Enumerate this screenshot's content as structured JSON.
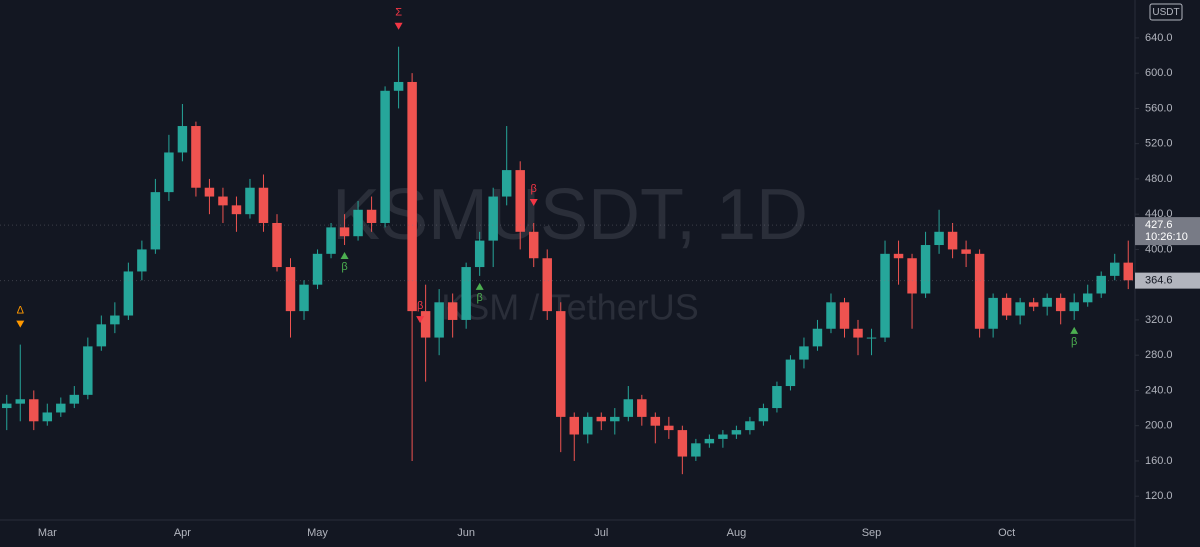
{
  "chart_data": {
    "type": "candlestick",
    "watermark": "KSMUSDT, 1D",
    "watermark_subtitle": "KSM / TetherUS",
    "currency": "USDT",
    "up_color": "#26a69a",
    "down_color": "#ef5350",
    "categories": [
      null,
      null,
      null,
      "Mar",
      null,
      null,
      null,
      null,
      null,
      null,
      null,
      null,
      null,
      "Apr",
      null,
      null,
      null,
      null,
      null,
      null,
      null,
      null,
      null,
      "May",
      null,
      null,
      null,
      null,
      null,
      null,
      null,
      null,
      null,
      null,
      "Jun",
      null,
      null,
      null,
      null,
      null,
      null,
      null,
      null,
      null,
      "Jul",
      null,
      null,
      null,
      null,
      null,
      null,
      null,
      null,
      null,
      "Aug",
      null,
      null,
      null,
      null,
      null,
      null,
      null,
      null,
      null,
      "Sep",
      null,
      null,
      null,
      null,
      null,
      null,
      null,
      null,
      null,
      "Oct",
      null,
      null,
      null,
      null,
      null,
      null,
      null,
      null,
      null
    ],
    "open": [
      220,
      225,
      230,
      205,
      215,
      225,
      235,
      290,
      315,
      325,
      375,
      400,
      465,
      510,
      540,
      470,
      460,
      450,
      440,
      470,
      430,
      380,
      330,
      360,
      395,
      425,
      415,
      445,
      430,
      580,
      590,
      330,
      300,
      340,
      320,
      380,
      410,
      460,
      490,
      420,
      390,
      330,
      210,
      190,
      210,
      205,
      210,
      230,
      210,
      200,
      195,
      165,
      180,
      185,
      190,
      195,
      205,
      220,
      245,
      275,
      290,
      310,
      340,
      310,
      300,
      300,
      395,
      390,
      350,
      405,
      420,
      400,
      395,
      310,
      345,
      325,
      340,
      335,
      345,
      330,
      340,
      350,
      370,
      385
    ],
    "high": [
      235,
      292,
      240,
      225,
      232,
      245,
      300,
      325,
      340,
      385,
      410,
      480,
      530,
      565,
      545,
      480,
      470,
      460,
      480,
      485,
      440,
      390,
      365,
      400,
      430,
      440,
      455,
      460,
      585,
      630,
      600,
      360,
      355,
      350,
      385,
      420,
      470,
      540,
      500,
      430,
      400,
      340,
      215,
      215,
      215,
      220,
      245,
      235,
      215,
      210,
      200,
      185,
      190,
      195,
      200,
      210,
      225,
      250,
      280,
      300,
      320,
      350,
      345,
      320,
      310,
      410,
      410,
      395,
      420,
      445,
      430,
      410,
      400,
      350,
      350,
      345,
      345,
      350,
      350,
      350,
      360,
      375,
      395,
      410
    ],
    "low": [
      195,
      205,
      195,
      200,
      210,
      220,
      230,
      285,
      305,
      320,
      365,
      395,
      455,
      500,
      460,
      440,
      430,
      420,
      435,
      420,
      375,
      300,
      320,
      355,
      390,
      405,
      410,
      420,
      425,
      560,
      160,
      250,
      280,
      300,
      310,
      370,
      380,
      450,
      400,
      380,
      320,
      170,
      160,
      180,
      195,
      190,
      205,
      200,
      180,
      185,
      145,
      160,
      175,
      175,
      185,
      190,
      200,
      215,
      240,
      265,
      285,
      305,
      300,
      280,
      280,
      295,
      360,
      310,
      345,
      395,
      390,
      380,
      300,
      300,
      320,
      315,
      330,
      325,
      315,
      320,
      335,
      345,
      365,
      355
    ],
    "close": [
      225,
      230,
      205,
      215,
      225,
      235,
      290,
      315,
      325,
      375,
      400,
      465,
      510,
      540,
      470,
      460,
      450,
      440,
      470,
      430,
      380,
      330,
      360,
      395,
      425,
      415,
      445,
      430,
      580,
      590,
      330,
      300,
      340,
      320,
      380,
      410,
      460,
      490,
      420,
      390,
      330,
      210,
      190,
      210,
      205,
      210,
      230,
      210,
      200,
      195,
      165,
      180,
      185,
      190,
      195,
      205,
      220,
      245,
      275,
      290,
      310,
      340,
      310,
      300,
      300,
      395,
      390,
      350,
      405,
      420,
      400,
      395,
      310,
      345,
      325,
      340,
      335,
      345,
      330,
      340,
      350,
      370,
      385,
      365
    ],
    "ylim": [
      93,
      683
    ],
    "yticks": [
      {
        "value": 120,
        "label": "120.0"
      },
      {
        "value": 160,
        "label": "160.0"
      },
      {
        "value": 200,
        "label": "200.0"
      },
      {
        "value": 240,
        "label": "240.0"
      },
      {
        "value": 280,
        "label": "280.0"
      },
      {
        "value": 320,
        "label": "320.0"
      },
      {
        "value": 360,
        "label": "360.0"
      },
      {
        "value": 400,
        "label": "400.0"
      },
      {
        "value": 440,
        "label": "440.0"
      },
      {
        "value": 480,
        "label": "480.0"
      },
      {
        "value": 520,
        "label": "520.0"
      },
      {
        "value": 560,
        "label": "560.0"
      },
      {
        "value": 600,
        "label": "600.0"
      },
      {
        "value": 640,
        "label": "640.0"
      }
    ],
    "grid": false,
    "annotations": [
      {
        "text": "Δ",
        "color": "#ff9800"
      },
      {
        "text": "β",
        "color": "#4caf50"
      },
      {
        "text": "Σ",
        "color": "#f23645"
      },
      {
        "text": "β",
        "color": "#f23645"
      },
      {
        "text": "β",
        "color": "#4caf50"
      },
      {
        "text": "β",
        "color": "#f23645"
      },
      {
        "text": "β",
        "color": "#4caf50"
      }
    ],
    "price_marker": {
      "value": 427.6,
      "label": "427.6",
      "countdown": "10:26:10"
    },
    "last_price": {
      "value": 364.6,
      "label": "364.6"
    }
  }
}
